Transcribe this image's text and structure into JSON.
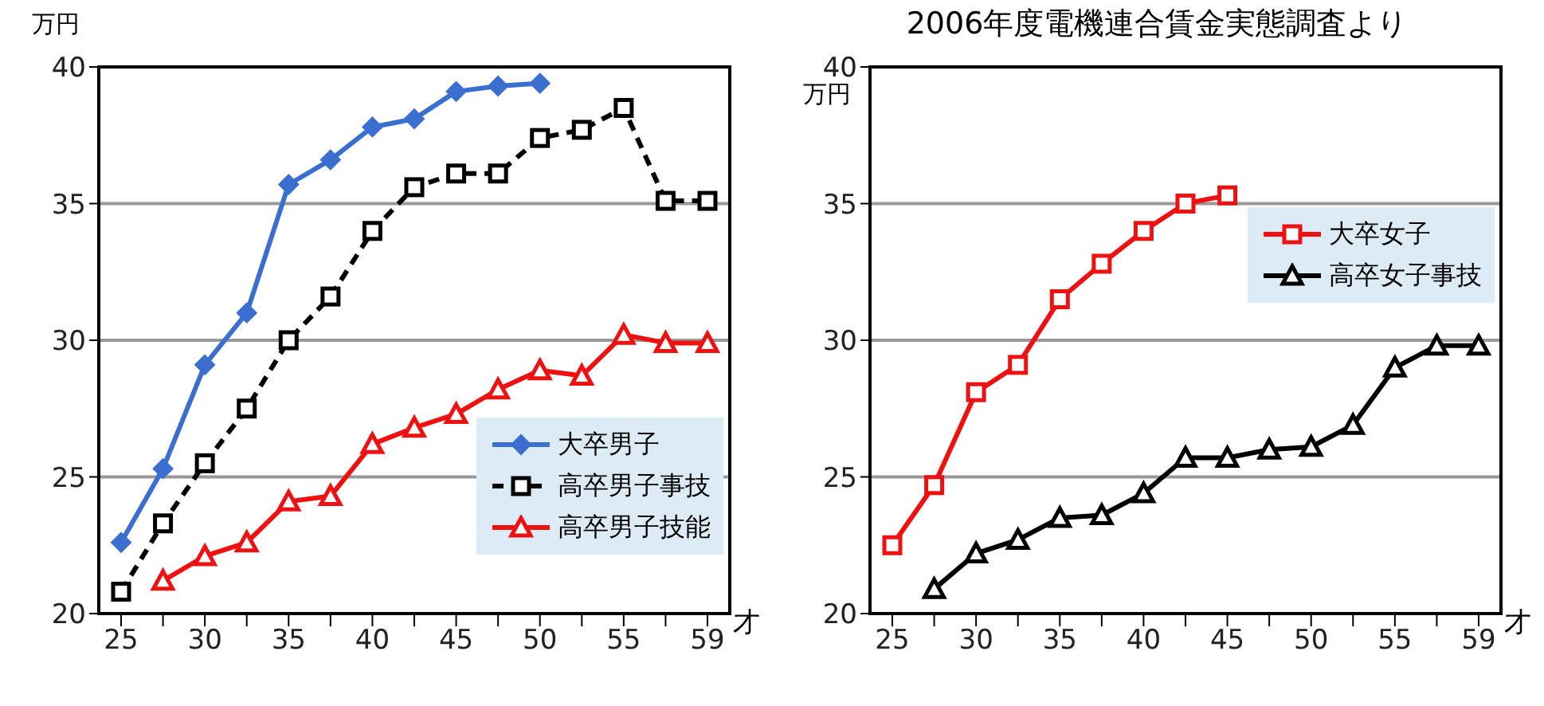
{
  "chart_data": [
    {
      "type": "line",
      "ylabel": "万円",
      "xlabel": "才",
      "categories": [
        "25",
        null,
        "30",
        null,
        "35",
        null,
        "40",
        null,
        "45",
        null,
        "50",
        null,
        "55",
        null,
        "59"
      ],
      "ylim": [
        20,
        40
      ],
      "yticks": [
        20,
        25,
        30,
        35,
        40
      ],
      "grid": "y",
      "legend": "bottom right",
      "series": [
        {
          "name": "大卒男子",
          "color": "#3a6fd0",
          "marker": "diamond",
          "line_style": "solid",
          "values": [
            22.6,
            25.3,
            29.1,
            31.0,
            35.7,
            36.6,
            37.8,
            38.1,
            39.1,
            39.3,
            39.4,
            null,
            null,
            null,
            null
          ]
        },
        {
          "name": "高卒男子事技",
          "color": "#000000",
          "marker": "square",
          "line_style": "dashed",
          "values": [
            20.8,
            23.3,
            25.5,
            27.5,
            30.0,
            31.6,
            34.0,
            35.6,
            36.1,
            36.1,
            37.4,
            37.7,
            38.5,
            35.1,
            35.1
          ]
        },
        {
          "name": "高卒男子技能",
          "color": "#ee1111",
          "marker": "triangle",
          "line_style": "solid",
          "values": [
            null,
            21.2,
            22.1,
            22.6,
            24.1,
            24.3,
            26.2,
            26.8,
            27.3,
            28.2,
            28.9,
            28.7,
            30.2,
            29.9,
            29.9
          ]
        }
      ]
    },
    {
      "type": "line",
      "title": "2006年度電機連合賃金実態調査より",
      "ylabel": "万円",
      "xlabel": "才",
      "categories": [
        "25",
        null,
        "30",
        null,
        "35",
        null,
        "40",
        null,
        "45",
        null,
        "50",
        null,
        "55",
        null,
        "59"
      ],
      "ylim": [
        20,
        40
      ],
      "yticks": [
        20,
        25,
        30,
        35,
        40
      ],
      "grid": "y",
      "legend": "top right",
      "series": [
        {
          "name": "大卒女子",
          "color": "#ee1111",
          "marker": "square",
          "line_style": "solid",
          "values": [
            22.5,
            24.7,
            28.1,
            29.1,
            31.5,
            32.8,
            34.0,
            35.0,
            35.3,
            null,
            null,
            null,
            null,
            null,
            null
          ]
        },
        {
          "name": "高卒女子事技",
          "color": "#000000",
          "marker": "triangle",
          "line_style": "solid",
          "values": [
            null,
            20.9,
            22.2,
            22.7,
            23.5,
            23.6,
            24.4,
            25.7,
            25.7,
            26.0,
            26.1,
            26.9,
            29.0,
            29.8,
            29.8
          ]
        }
      ]
    }
  ]
}
